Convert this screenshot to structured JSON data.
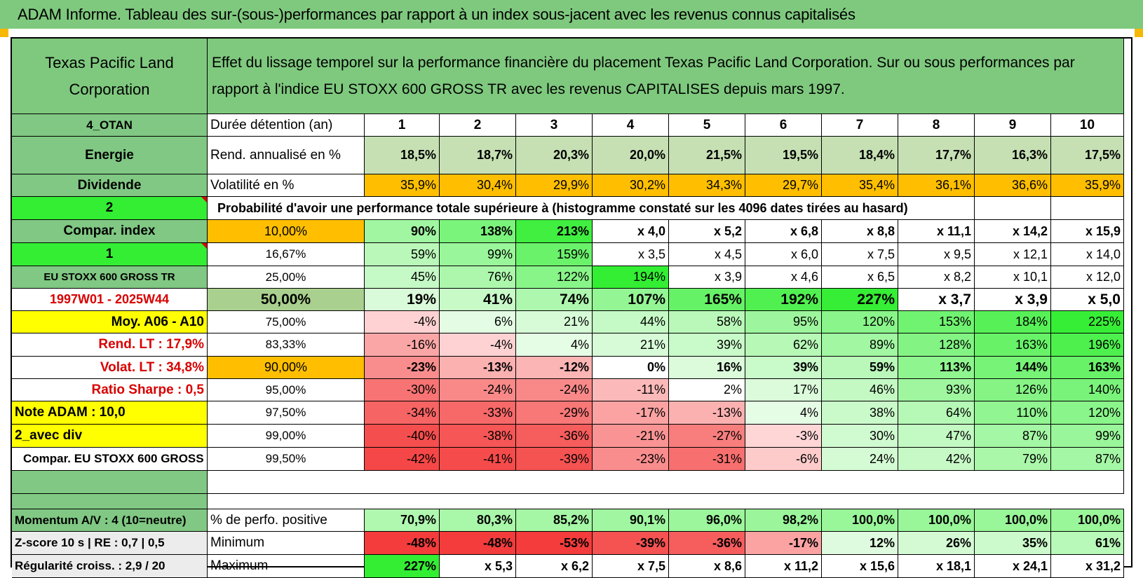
{
  "title": "ADAM Informe. Tableau des sur-(sous-)performances par rapport à un index sous-jacent avec les revenus connus capitalisés",
  "header": {
    "left": "Texas Pacific Land Corporation",
    "right": "Effet du lissage temporel sur la performance financière du placement Texas Pacific Land Corporation. Sur ou sous performances par rapport à l'indice EU STOXX 600 GROSS TR avec les revenus CAPITALISES depuis mars 1997."
  },
  "side_labels": [
    "4_OTAN",
    "Energie",
    "Dividende",
    "2",
    "Compar. index",
    "1",
    "EU STOXX 600 GROSS TR",
    "1997W01 - 2025W44",
    "Moy. A06 - A10",
    "Rend. LT :    17,9%",
    "Volat. LT :    34,8%",
    "Ratio Sharpe :     0,5",
    "Note ADAM : 10,0",
    "2_avec div",
    "Compar. EU STOXX 600 GROSS TR",
    "",
    "Momentum A/V : 4 (10=neutre)",
    "Z-score 10 s | RE : 0,7 | 0,5",
    "Régularité croiss. : 2,9 / 20"
  ],
  "years_label": "Durée détention (an)",
  "years": [
    "1",
    "2",
    "3",
    "4",
    "5",
    "6",
    "7",
    "8",
    "9",
    "10"
  ],
  "rend_label": "Rend. annualisé en %",
  "rend": [
    "18,5%",
    "18,7%",
    "20,3%",
    "20,0%",
    "21,5%",
    "19,5%",
    "18,4%",
    "17,7%",
    "16,3%",
    "17,5%"
  ],
  "vol_label": "Volatilité en %",
  "vol": [
    "35,9%",
    "30,4%",
    "29,9%",
    "30,2%",
    "34,3%",
    "29,7%",
    "35,4%",
    "36,1%",
    "36,6%",
    "35,9%"
  ],
  "prob_title": "Probabilité d'avoir une performance totale supérieure à (histogramme constaté sur les 4096 dates tirées au hasard)",
  "prob_rows": [
    {
      "pct": "10,00%",
      "values": [
        "90%",
        "138%",
        "213%",
        "x 4,0",
        "x 5,2",
        "x 6,8",
        "x 8,8",
        "x 11,1",
        "x 14,2",
        "x 15,9"
      ]
    },
    {
      "pct": "16,67%",
      "values": [
        "59%",
        "99%",
        "159%",
        "x 3,5",
        "x 4,5",
        "x 6,0",
        "x 7,5",
        "x 9,5",
        "x 12,1",
        "x 14,0"
      ]
    },
    {
      "pct": "25,00%",
      "values": [
        "45%",
        "76%",
        "122%",
        "194%",
        "x 3,9",
        "x 4,6",
        "x 6,5",
        "x 8,2",
        "x 10,1",
        "x 12,0"
      ]
    },
    {
      "pct": "50,00%",
      "values": [
        "19%",
        "41%",
        "74%",
        "107%",
        "165%",
        "192%",
        "227%",
        "x 3,7",
        "x 3,9",
        "x 5,0"
      ]
    },
    {
      "pct": "75,00%",
      "values": [
        "-4%",
        "6%",
        "21%",
        "44%",
        "58%",
        "95%",
        "120%",
        "153%",
        "184%",
        "225%"
      ]
    },
    {
      "pct": "83,33%",
      "values": [
        "-16%",
        "-4%",
        "4%",
        "21%",
        "39%",
        "62%",
        "89%",
        "128%",
        "163%",
        "196%"
      ]
    },
    {
      "pct": "90,00%",
      "values": [
        "-23%",
        "-13%",
        "-12%",
        "0%",
        "16%",
        "39%",
        "59%",
        "113%",
        "144%",
        "163%"
      ]
    },
    {
      "pct": "95,00%",
      "values": [
        "-30%",
        "-24%",
        "-24%",
        "-11%",
        "2%",
        "17%",
        "46%",
        "93%",
        "126%",
        "140%"
      ]
    },
    {
      "pct": "97,50%",
      "values": [
        "-34%",
        "-33%",
        "-29%",
        "-17%",
        "-13%",
        "4%",
        "38%",
        "64%",
        "110%",
        "120%"
      ]
    },
    {
      "pct": "99,00%",
      "values": [
        "-40%",
        "-38%",
        "-36%",
        "-21%",
        "-27%",
        "-3%",
        "30%",
        "47%",
        "87%",
        "99%"
      ]
    },
    {
      "pct": "99,50%",
      "values": [
        "-42%",
        "-41%",
        "-39%",
        "-23%",
        "-31%",
        "-6%",
        "24%",
        "42%",
        "79%",
        "87%"
      ]
    }
  ],
  "pos_label": "% de perfo. positive",
  "pos": [
    "70,9%",
    "80,3%",
    "85,2%",
    "90,1%",
    "96,0%",
    "98,2%",
    "100,0%",
    "100,0%",
    "100,0%",
    "100,0%"
  ],
  "min_label": "Minimum",
  "min": [
    "-48%",
    "-48%",
    "-53%",
    "-39%",
    "-36%",
    "-17%",
    "12%",
    "26%",
    "35%",
    "61%"
  ],
  "max_label": "Maximum",
  "max": [
    "227%",
    "x 5,3",
    "x 6,2",
    "x 7,5",
    "x 8,6",
    "x 11,2",
    "x 15,6",
    "x 18,1",
    "x 24,1",
    "x 31,2"
  ],
  "colors": {
    "title_bg": "#7fc97f",
    "header_bg": "#7fc97f",
    "label_green": "#80c883",
    "bright_green": "#33ee33",
    "orange": "#ffbf00",
    "yellow": "#ffff00",
    "median_olive": "#a9d08e",
    "red_text": "#d90000"
  }
}
